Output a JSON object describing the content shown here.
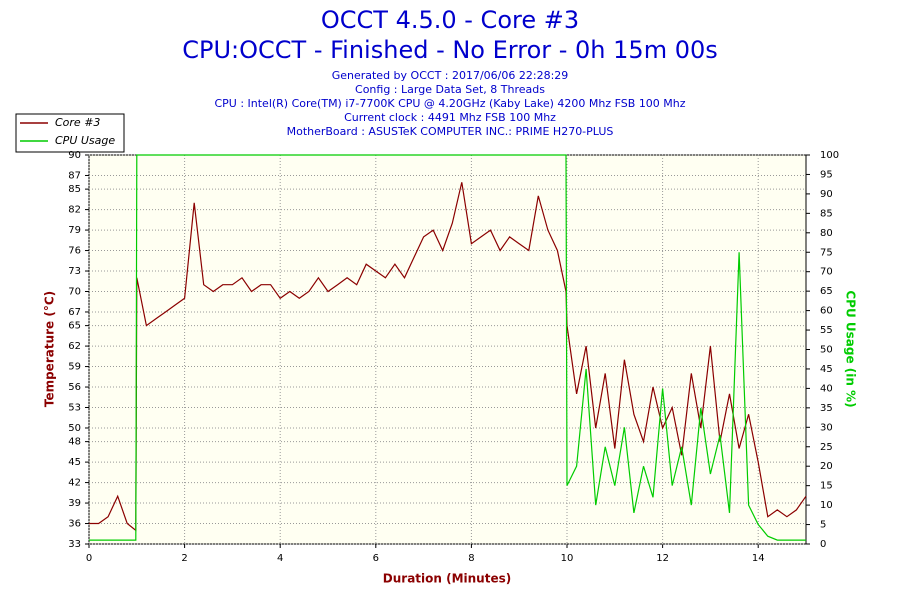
{
  "chart_data": {
    "type": "line",
    "title": "OCCT 4.5.0 - Core #3",
    "subtitle": "CPU:OCCT - Finished - No Error - 0h 15m 00s",
    "info": [
      "Generated by OCCT : 2017/06/06 22:28:29",
      "Config : Large Data Set, 8 Threads",
      "CPU : Intel(R) Core(TM) i7-7700K CPU @ 4.20GHz (Kaby Lake) 4200 Mhz FSB 100 Mhz",
      "Current clock : 4491 Mhz FSB 100 Mhz",
      "MotherBoard : ASUSTeK COMPUTER INC.: PRIME H270-PLUS"
    ],
    "x_label": "Duration (Minutes)",
    "y_label": "Temperature (°C)",
    "y2_label": "CPU Usage (in %)",
    "xlim": [
      0,
      15
    ],
    "xticks": [
      0,
      2,
      4,
      6,
      8,
      10,
      12,
      14
    ],
    "ylim": [
      33,
      90
    ],
    "yticks": [
      33,
      36,
      39,
      42,
      45,
      48,
      50,
      53,
      56,
      59,
      62,
      65,
      67,
      70,
      73,
      76,
      79,
      82,
      85,
      87,
      90
    ],
    "y2lim": [
      0,
      100
    ],
    "y2ticks": [
      0,
      5,
      10,
      15,
      20,
      25,
      30,
      35,
      40,
      45,
      50,
      55,
      60,
      65,
      70,
      75,
      80,
      85,
      90,
      95,
      100
    ],
    "grid": true,
    "legend": "top-left",
    "x": [
      0,
      0.2,
      0.4,
      0.6,
      0.8,
      0.98,
      1.0,
      1.2,
      1.4,
      1.6,
      1.8,
      2.0,
      2.2,
      2.4,
      2.6,
      2.8,
      3.0,
      3.2,
      3.4,
      3.6,
      3.8,
      4.0,
      4.2,
      4.4,
      4.6,
      4.8,
      5.0,
      5.2,
      5.4,
      5.6,
      5.8,
      6.0,
      6.2,
      6.4,
      6.6,
      6.8,
      7.0,
      7.2,
      7.4,
      7.6,
      7.8,
      8.0,
      8.2,
      8.4,
      8.6,
      8.8,
      9.0,
      9.2,
      9.4,
      9.6,
      9.8,
      9.98,
      10.0,
      10.2,
      10.4,
      10.6,
      10.8,
      11.0,
      11.2,
      11.4,
      11.6,
      11.8,
      12.0,
      12.2,
      12.4,
      12.6,
      12.8,
      13.0,
      13.2,
      13.4,
      13.6,
      13.8,
      14.0,
      14.2,
      14.4,
      14.6,
      14.8,
      15.0
    ],
    "series": [
      {
        "name": "Core #3",
        "color": "#8b0000",
        "values": [
          36,
          36,
          37,
          40,
          36,
          35,
          72,
          65,
          66,
          67,
          68,
          69,
          83,
          71,
          70,
          71,
          71,
          72,
          70,
          71,
          71,
          69,
          70,
          69,
          70,
          72,
          70,
          71,
          72,
          71,
          74,
          73,
          72,
          74,
          72,
          75,
          78,
          79,
          76,
          80,
          86,
          77,
          78,
          79,
          76,
          78,
          77,
          76,
          84,
          79,
          76,
          70,
          65,
          55,
          62,
          50,
          58,
          47,
          60,
          52,
          48,
          56,
          50,
          53,
          46,
          58,
          50,
          62,
          48,
          55,
          47,
          52,
          45,
          37,
          38,
          37,
          38,
          40
        ]
      },
      {
        "name": "CPU Usage",
        "color": "#00cc00",
        "axis": "y2",
        "values": [
          1,
          1,
          1,
          1,
          1,
          1,
          100,
          100,
          100,
          100,
          100,
          100,
          100,
          100,
          100,
          100,
          100,
          100,
          100,
          100,
          100,
          100,
          100,
          100,
          100,
          100,
          100,
          100,
          100,
          100,
          100,
          100,
          100,
          100,
          100,
          100,
          100,
          100,
          100,
          100,
          100,
          100,
          100,
          100,
          100,
          100,
          100,
          100,
          100,
          100,
          100,
          100,
          15,
          20,
          45,
          10,
          25,
          15,
          30,
          8,
          20,
          12,
          40,
          15,
          25,
          10,
          35,
          18,
          28,
          8,
          75,
          10,
          5,
          2,
          1,
          1,
          1,
          1
        ]
      }
    ]
  }
}
